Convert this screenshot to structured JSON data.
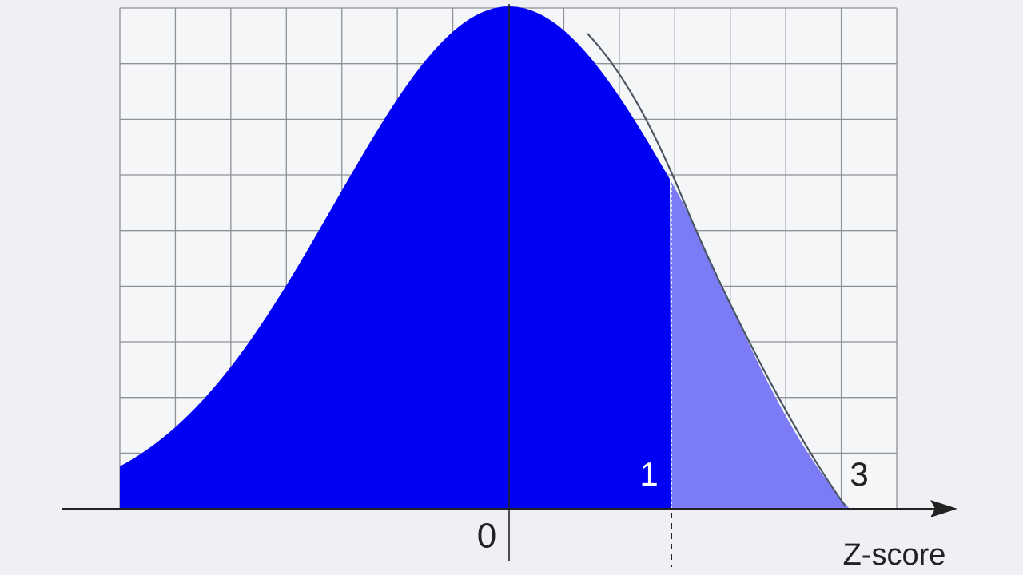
{
  "axis": {
    "label": "Z-score",
    "ticks": [
      "0",
      "1",
      "3"
    ]
  }
}
